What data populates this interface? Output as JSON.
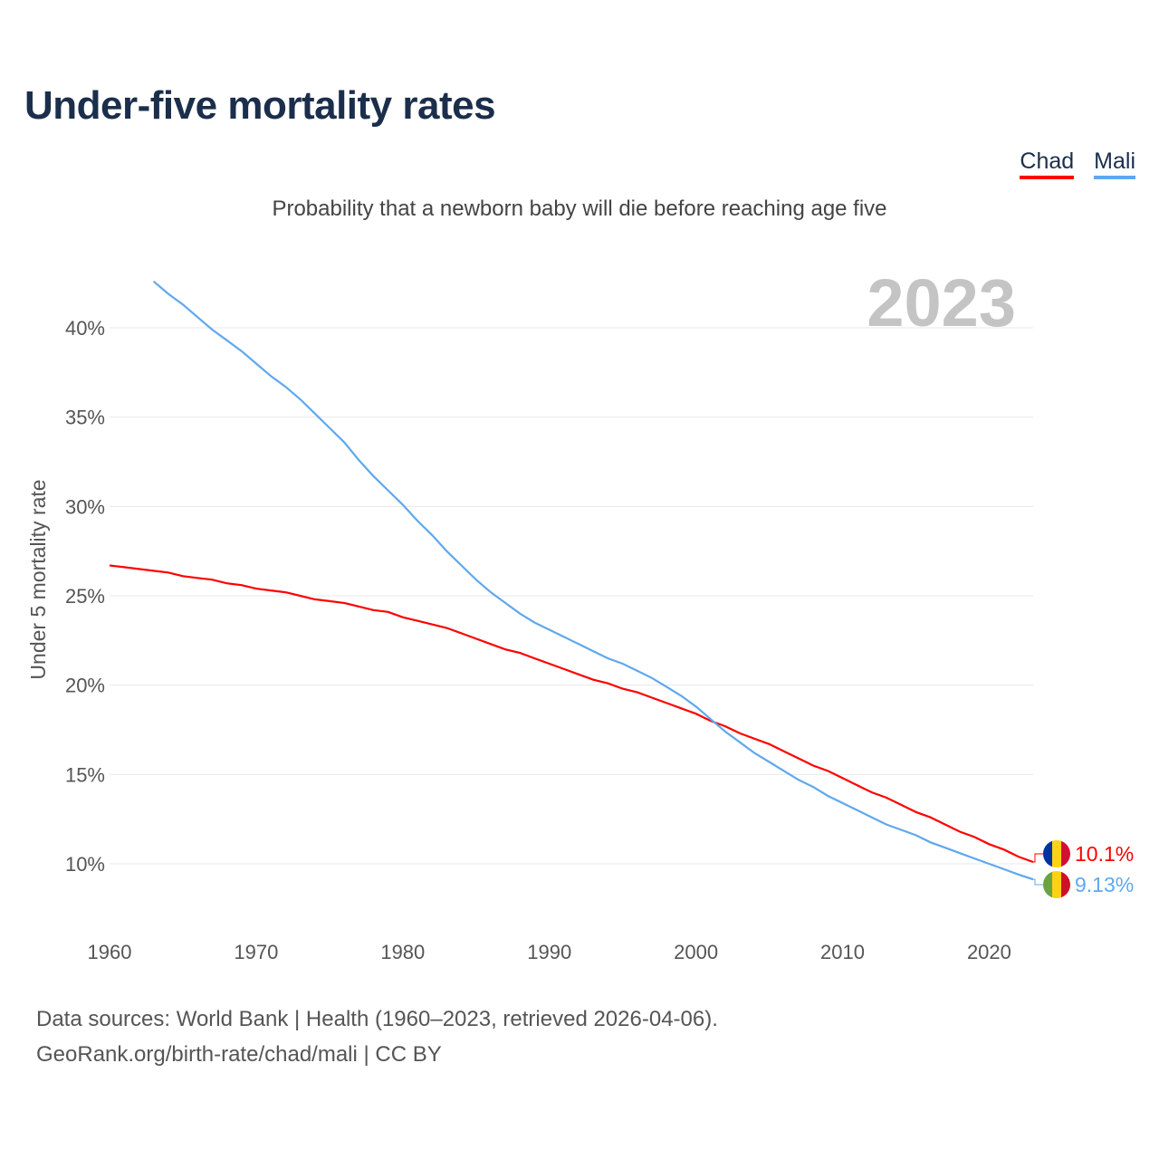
{
  "header": {
    "title": "Under-five mortality rates",
    "subtitle": "Probability that a newborn baby will die before reaching age five"
  },
  "legend": [
    {
      "label": "Chad",
      "color": "#ff0000"
    },
    {
      "label": "Mali",
      "color": "#5fa8ee"
    }
  ],
  "footer": {
    "line1": "Data sources: World Bank | Health (1960–2023, retrieved 2026-04-06).",
    "line2": "GeoRank.org/birth-rate/chad/mali | CC BY"
  },
  "chart_data": {
    "type": "line",
    "title": "Under-five mortality rates",
    "ylabel": "Under 5 mortality rate",
    "xlabel": "",
    "year_label": "2023",
    "xlim": [
      1960,
      2023
    ],
    "ylim": [
      7,
      44
    ],
    "xticks": [
      "1960",
      "1970",
      "1980",
      "1990",
      "2000",
      "2010",
      "2020"
    ],
    "yticks": [
      "10%",
      "15%",
      "20%",
      "25%",
      "30%",
      "35%",
      "40%"
    ],
    "ytick_values": [
      10,
      15,
      20,
      25,
      30,
      35,
      40
    ],
    "xtick_values": [
      1960,
      1970,
      1980,
      1990,
      2000,
      2010,
      2020
    ],
    "grid": true,
    "legend_position": "top-right",
    "series": [
      {
        "name": "Chad",
        "color": "#ff0000",
        "start_year": 1960,
        "end_label": "10.1%",
        "flag": [
          "#0032a0",
          "#fdd116",
          "#d21034"
        ],
        "values": [
          26.7,
          26.6,
          26.5,
          26.4,
          26.3,
          26.1,
          26.0,
          25.9,
          25.7,
          25.6,
          25.4,
          25.3,
          25.2,
          25.0,
          24.8,
          24.7,
          24.6,
          24.4,
          24.2,
          24.1,
          23.8,
          23.6,
          23.4,
          23.2,
          22.9,
          22.6,
          22.3,
          22.0,
          21.8,
          21.5,
          21.2,
          20.9,
          20.6,
          20.3,
          20.1,
          19.8,
          19.6,
          19.3,
          19.0,
          18.7,
          18.4,
          18.0,
          17.7,
          17.3,
          17.0,
          16.7,
          16.3,
          15.9,
          15.5,
          15.2,
          14.8,
          14.4,
          14.0,
          13.7,
          13.3,
          12.9,
          12.6,
          12.2,
          11.8,
          11.5,
          11.1,
          10.8,
          10.4,
          10.1
        ]
      },
      {
        "name": "Mali",
        "color": "#5fa8ee",
        "start_year": 1963,
        "end_label": "9.13%",
        "flag": [
          "#6ca341",
          "#fcd116",
          "#ce1126"
        ],
        "values": [
          42.6,
          41.9,
          41.3,
          40.6,
          39.9,
          39.3,
          38.7,
          38.0,
          37.3,
          36.7,
          36.0,
          35.2,
          34.4,
          33.6,
          32.6,
          31.7,
          30.9,
          30.1,
          29.2,
          28.4,
          27.5,
          26.7,
          25.9,
          25.2,
          24.6,
          24.0,
          23.5,
          23.1,
          22.7,
          22.3,
          21.9,
          21.5,
          21.2,
          20.8,
          20.4,
          19.9,
          19.4,
          18.8,
          18.1,
          17.4,
          16.8,
          16.2,
          15.7,
          15.2,
          14.7,
          14.3,
          13.8,
          13.4,
          13.0,
          12.6,
          12.2,
          11.9,
          11.6,
          11.2,
          10.9,
          10.6,
          10.3,
          10.0,
          9.7,
          9.4,
          9.13
        ]
      }
    ]
  }
}
